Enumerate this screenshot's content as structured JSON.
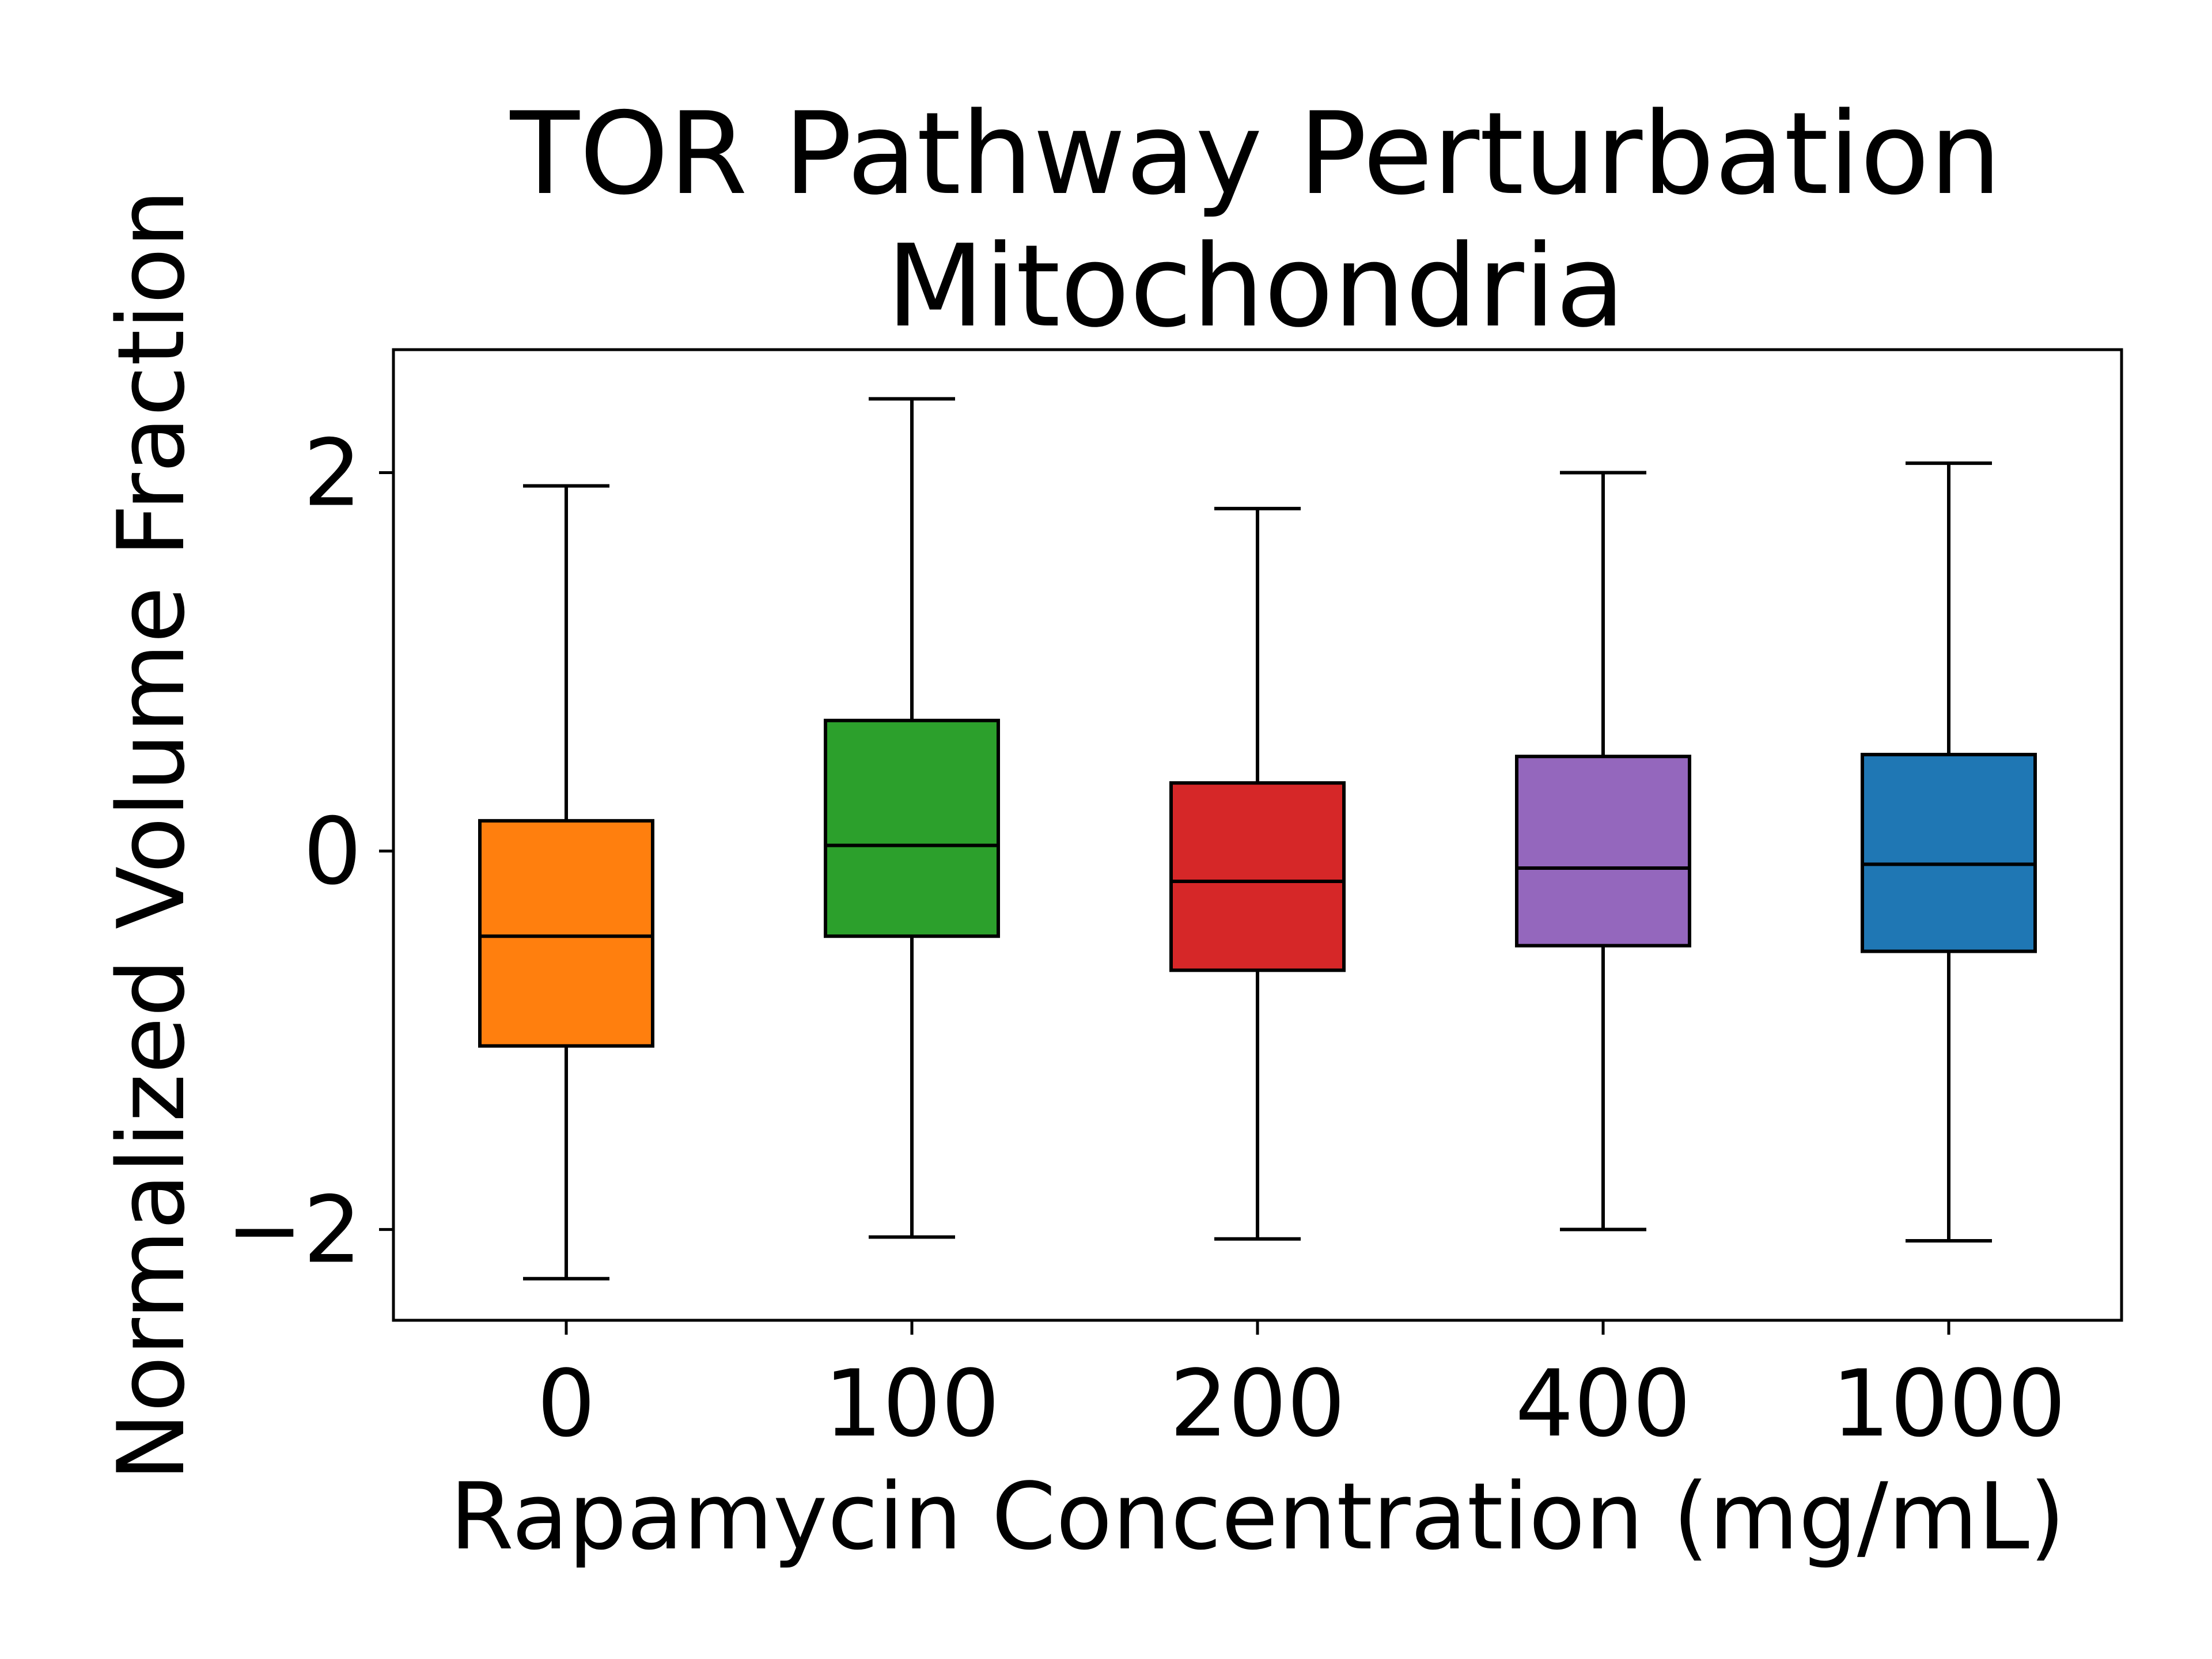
{
  "chart_data": {
    "type": "box",
    "title": "TOR Pathway Perturbation",
    "subtitle": "Mitochondria",
    "xlabel": "Rapamycin Concentration (mg/mL)",
    "ylabel": "Normalized Volume Fraction",
    "categories": [
      "0",
      "100",
      "200",
      "400",
      "1000"
    ],
    "yticks": [
      {
        "value": -2,
        "label": "−2"
      },
      {
        "value": 0,
        "label": "0"
      },
      {
        "value": 2,
        "label": "2"
      }
    ],
    "ylim": [
      -2.48,
      2.65
    ],
    "grid": false,
    "legend": "none",
    "boxes": [
      {
        "category": "0",
        "whisker_low": -2.26,
        "q1": -1.03,
        "median": -0.45,
        "q3": 0.16,
        "whisker_high": 1.93,
        "color": "#ff7f0e"
      },
      {
        "category": "100",
        "whisker_low": -2.04,
        "q1": -0.45,
        "median": 0.03,
        "q3": 0.69,
        "whisker_high": 2.39,
        "color": "#2ca02c"
      },
      {
        "category": "200",
        "whisker_low": -2.05,
        "q1": -0.63,
        "median": -0.16,
        "q3": 0.36,
        "whisker_high": 1.81,
        "color": "#d62728"
      },
      {
        "category": "400",
        "whisker_low": -2.0,
        "q1": -0.5,
        "median": -0.09,
        "q3": 0.5,
        "whisker_high": 2.0,
        "color": "#9467bd"
      },
      {
        "category": "1000",
        "whisker_low": -2.06,
        "q1": -0.53,
        "median": -0.07,
        "q3": 0.51,
        "whisker_high": 2.05,
        "color": "#1f77b4"
      }
    ]
  }
}
